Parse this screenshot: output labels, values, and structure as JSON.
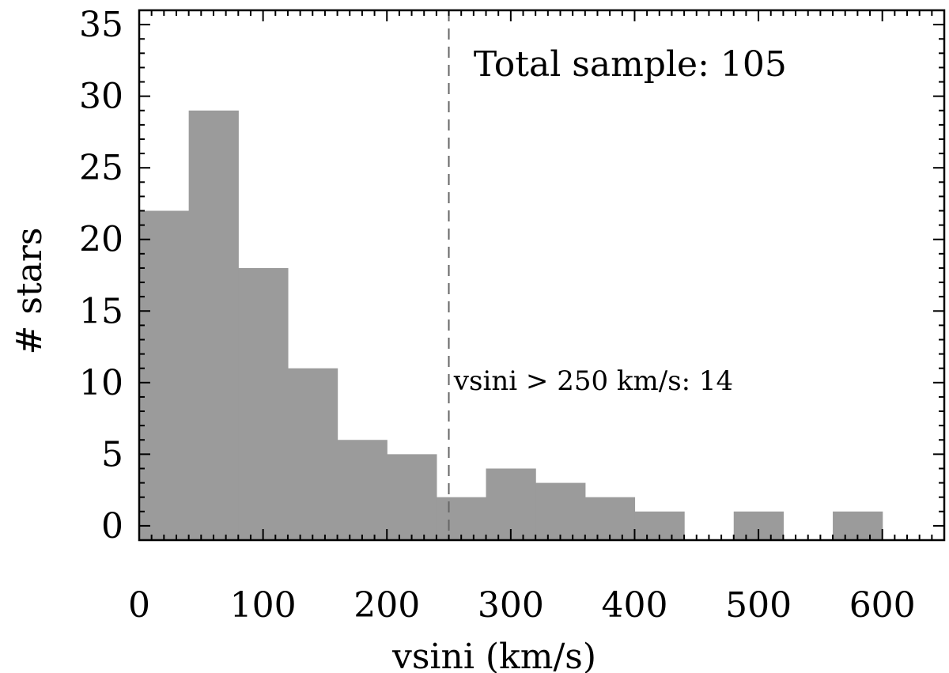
{
  "chart_data": {
    "type": "bar",
    "title": "",
    "xlabel": "vsini (km/s)",
    "ylabel": "# stars",
    "xlim": [
      0,
      650
    ],
    "ylim": [
      -1,
      36
    ],
    "bar_color": "#9b9b9b",
    "bins": [
      {
        "x0": 0,
        "x1": 40,
        "count": 22
      },
      {
        "x0": 40,
        "x1": 80,
        "count": 29
      },
      {
        "x0": 80,
        "x1": 120,
        "count": 18
      },
      {
        "x0": 120,
        "x1": 160,
        "count": 11
      },
      {
        "x0": 160,
        "x1": 200,
        "count": 6
      },
      {
        "x0": 200,
        "x1": 240,
        "count": 5
      },
      {
        "x0": 240,
        "x1": 280,
        "count": 2
      },
      {
        "x0": 280,
        "x1": 320,
        "count": 4
      },
      {
        "x0": 320,
        "x1": 360,
        "count": 3
      },
      {
        "x0": 360,
        "x1": 400,
        "count": 2
      },
      {
        "x0": 400,
        "x1": 440,
        "count": 1
      },
      {
        "x0": 440,
        "x1": 480,
        "count": 0
      },
      {
        "x0": 480,
        "x1": 520,
        "count": 1
      },
      {
        "x0": 520,
        "x1": 560,
        "count": 0
      },
      {
        "x0": 560,
        "x1": 600,
        "count": 1
      }
    ],
    "x_ticks": [
      0,
      100,
      200,
      300,
      400,
      500,
      600
    ],
    "x_tick_labels": [
      "0",
      "100",
      "200",
      "300",
      "400",
      "500",
      "600"
    ],
    "y_ticks": [
      0,
      5,
      10,
      15,
      20,
      25,
      30,
      35
    ],
    "y_tick_labels": [
      "0",
      "5",
      "10",
      "15",
      "20",
      "25",
      "30",
      "35"
    ],
    "threshold_line": {
      "x": 250,
      "style": "dashed"
    },
    "annotations": [
      {
        "text": "Total sample: 105",
        "x": 212,
        "y": 32.2
      },
      {
        "text": "vsini > 250 km/s: 14",
        "x": 254,
        "y": 10.1
      }
    ],
    "grid": false
  }
}
